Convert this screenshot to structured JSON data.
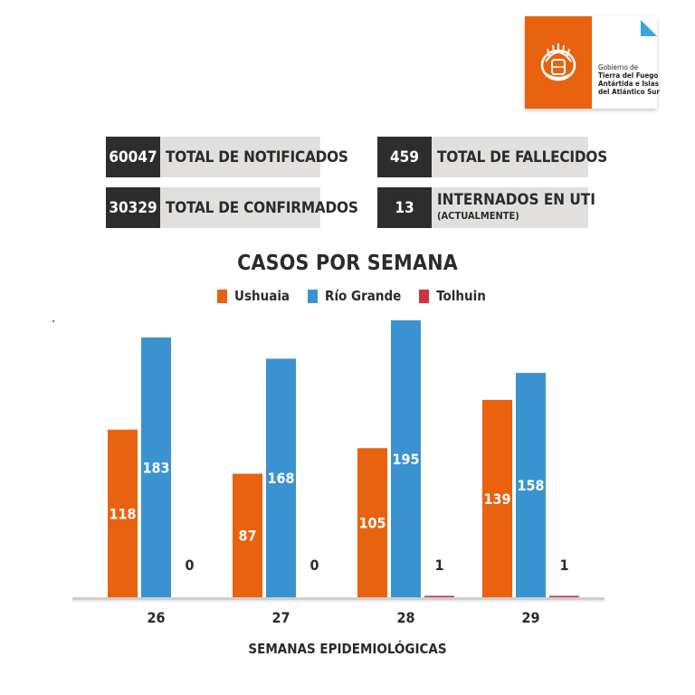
{
  "logo": {
    "line1": "Gobierno de",
    "line2": "Tierra del Fuego",
    "line3": "Antártida e Islas",
    "line4": "del Atlántico Sur"
  },
  "stats": {
    "notificados": {
      "value": "60047",
      "label": "TOTAL DE NOTIFICADOS"
    },
    "confirmados": {
      "value": "30329",
      "label": "TOTAL DE CONFIRMADOS"
    },
    "fallecidos": {
      "value": "459",
      "label": "TOTAL DE FALLECIDOS"
    },
    "uti": {
      "value": "13",
      "label": "INTERNADOS EN UTI",
      "sublabel": "(ACTUALMENTE)"
    }
  },
  "colors": {
    "ushuaia": "#e8620f",
    "rio_grande": "#3a93d0",
    "tolhuin": "#cc3344",
    "dark": "#2d2d2d",
    "panel": "#e2e0de"
  },
  "chart_data": {
    "type": "bar",
    "title": "CASOS POR SEMANA",
    "xlabel": "SEMANAS EPIDEMIOLÓGICAS",
    "ylabel": "",
    "categories": [
      "26",
      "27",
      "28",
      "29"
    ],
    "series": [
      {
        "name": "Ushuaia",
        "values": [
          118,
          87,
          105,
          139
        ]
      },
      {
        "name": "Río Grande",
        "values": [
          183,
          168,
          195,
          158
        ]
      },
      {
        "name": "Tolhuin",
        "values": [
          0,
          0,
          1,
          1
        ]
      }
    ],
    "ylim": [
      0,
      195
    ],
    "grid": false,
    "legend": "top-center"
  }
}
